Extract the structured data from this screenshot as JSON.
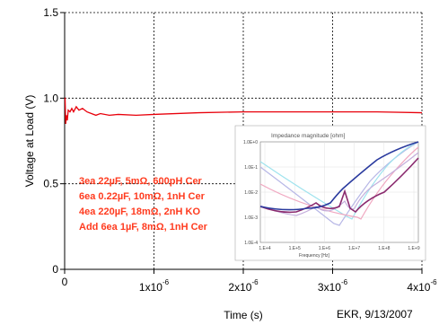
{
  "chart_data": {
    "type": "line",
    "xlabel": "Time (s)",
    "ylabel": "Voltage at Load (V)",
    "xlim": [
      0,
      4e-06
    ],
    "ylim": [
      0,
      1.5
    ],
    "x_ticks": [
      {
        "value": 0,
        "base": "0",
        "exp": ""
      },
      {
        "value": 1e-06,
        "base": "1x10",
        "exp": "-6"
      },
      {
        "value": 2e-06,
        "base": "2x10",
        "exp": "-6"
      },
      {
        "value": 3e-06,
        "base": "3x10",
        "exp": "-6"
      },
      {
        "value": 4e-06,
        "base": "4x10",
        "exp": "-6"
      }
    ],
    "y_ticks": [
      {
        "value": 0,
        "label": "0"
      },
      {
        "value": 0.5,
        "label": "0.5"
      },
      {
        "value": 1.0,
        "label": "1.0"
      },
      {
        "value": 1.5,
        "label": "1.5"
      }
    ],
    "grid": true,
    "series": [
      {
        "color": "#e8000b",
        "x": [
          0,
          5e-09,
          1.2e-08,
          2e-08,
          3e-08,
          4e-08,
          6e-08,
          8e-08,
          1e-07,
          1.3e-07,
          1.6e-07,
          2e-07,
          2.5e-07,
          3e-07,
          3.5e-07,
          4e-07,
          5e-07,
          6e-07,
          8e-07,
          1e-06,
          1.5e-06,
          2e-06,
          2.5e-06,
          3e-06,
          3.5e-06,
          4e-06
        ],
        "y": [
          1.0,
          1.0,
          0.85,
          0.9,
          0.87,
          0.93,
          0.92,
          0.94,
          0.92,
          0.95,
          0.93,
          0.94,
          0.92,
          0.91,
          0.9,
          0.91,
          0.9,
          0.905,
          0.9,
          0.905,
          0.915,
          0.92,
          0.92,
          0.92,
          0.92,
          0.915
        ]
      }
    ],
    "annotations": [
      "3ea 22µF, 5mΩ, 600pH Cer",
      "6ea 0.22µF, 10mΩ, 1nH Cer",
      "4ea 220µF, 18mΩ, 2nH KO",
      "Add 6ea 1µF, 8mΩ, 1nH Cer"
    ],
    "inset": {
      "title": "Impedance magnitude [ohm]",
      "xlabel": "Frequency [Hz]",
      "y_ticks": [
        "1.0E+0",
        "1.0E-1",
        "1.0E-2",
        "1.0E-3",
        "1.0E-4"
      ],
      "x_ticks": [
        "1.E+4",
        "1.E+5",
        "1.E+6",
        "1.E+7",
        "1.E+8",
        "1.E+9"
      ]
    },
    "credit": "EKR, 9/13/2007"
  }
}
